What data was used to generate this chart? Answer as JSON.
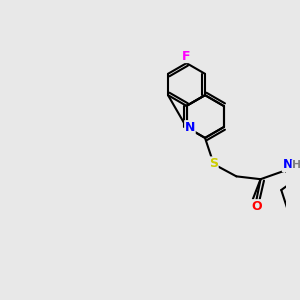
{
  "background_color": "#e8e8e8",
  "bond_color": "#000000",
  "bond_width": 1.5,
  "atom_colors": {
    "F": "#ff00ff",
    "N": "#0000ff",
    "S": "#cccc00",
    "O": "#ff0000",
    "H": "#808080",
    "C": "#000000"
  },
  "figsize": [
    3.0,
    3.0
  ],
  "dpi": 100
}
